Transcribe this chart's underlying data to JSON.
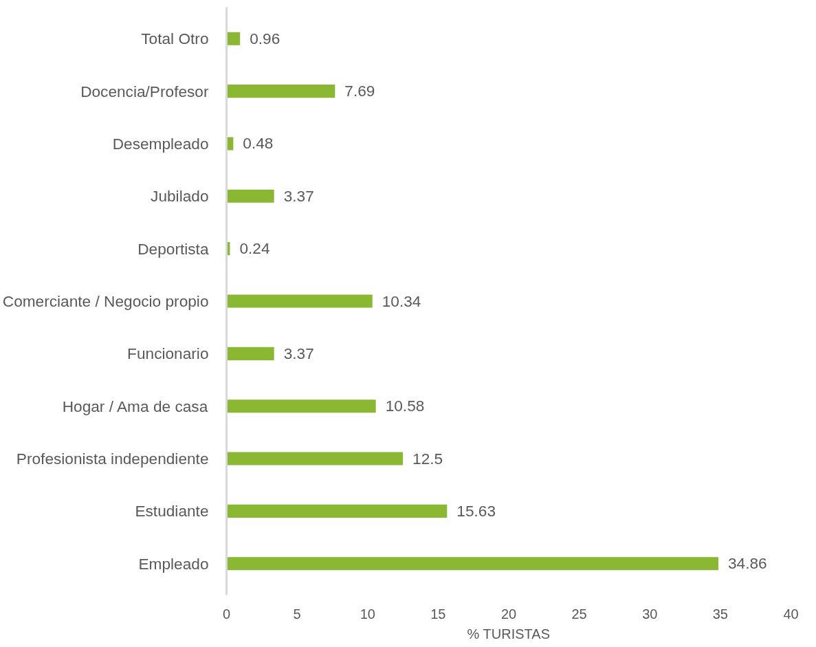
{
  "chart_data": {
    "type": "bar",
    "orientation": "horizontal",
    "xlabel": "% TURISTAS",
    "categories": [
      "Total Otro",
      "Docencia/Profesor",
      "Desempleado",
      "Jubilado",
      "Deportista",
      "Comerciante / Negocio propio",
      "Funcionario",
      "Hogar / Ama de casa",
      "Profesionista independiente",
      "Estudiante",
      "Empleado"
    ],
    "values": [
      0.96,
      7.69,
      0.48,
      3.37,
      0.24,
      10.34,
      3.37,
      10.58,
      12.5,
      15.63,
      34.86
    ],
    "color": "#8ab833",
    "xlim": [
      0,
      40
    ],
    "xticks": [
      0,
      5,
      10,
      15,
      20,
      25,
      30,
      35,
      40
    ],
    "data_labels": true,
    "grid": false
  }
}
